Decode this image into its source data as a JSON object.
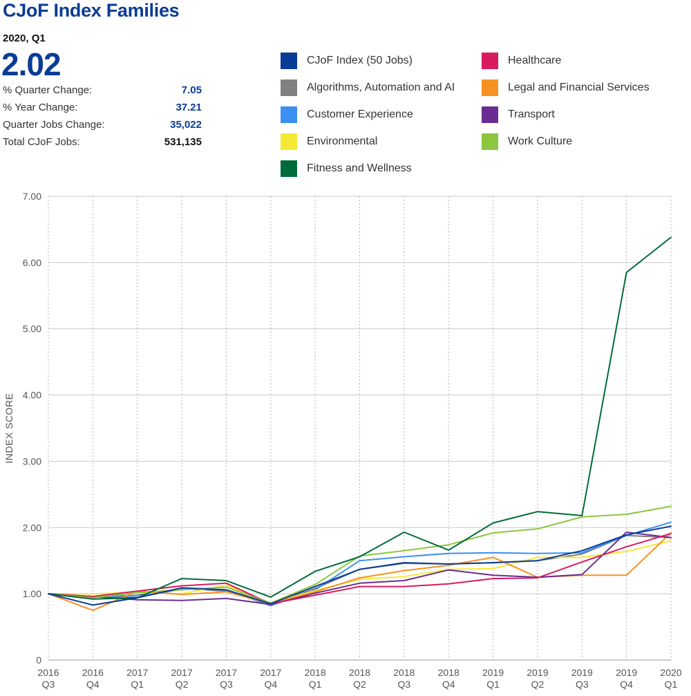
{
  "header": {
    "title": "CJoF Index Families",
    "period": "2020, Q1",
    "value": "2.02"
  },
  "stats": [
    {
      "label": "% Quarter Change:",
      "value": "7.05"
    },
    {
      "label": "% Year Change:",
      "value": "37.21"
    },
    {
      "label": "Quarter Jobs Change:",
      "value": "35,022"
    },
    {
      "label": "Total CJoF Jobs:",
      "value": "531,135"
    }
  ],
  "colors": {
    "accent": "#0a3b96",
    "grid": "#c8c8c8"
  },
  "chart_data": {
    "type": "line",
    "ylabel": "INDEX SCORE",
    "xlabel": "",
    "ylim": [
      0,
      7
    ],
    "yticks": [
      0,
      1,
      2,
      3,
      4,
      5,
      6,
      7
    ],
    "ytick_labels": [
      "0",
      "1.00",
      "2.00",
      "3.00",
      "4.00",
      "5.00",
      "6.00",
      "7.00"
    ],
    "grid": true,
    "legend_position": "top-right",
    "categories": [
      [
        "2016",
        "Q3"
      ],
      [
        "2016",
        "Q4"
      ],
      [
        "2017",
        "Q1"
      ],
      [
        "2017",
        "Q2"
      ],
      [
        "2017",
        "Q3"
      ],
      [
        "2017",
        "Q4"
      ],
      [
        "2018",
        "Q1"
      ],
      [
        "2018",
        "Q2"
      ],
      [
        "2018",
        "Q3"
      ],
      [
        "2018",
        "Q4"
      ],
      [
        "2019",
        "Q1"
      ],
      [
        "2019",
        "Q2"
      ],
      [
        "2019",
        "Q3"
      ],
      [
        "2019",
        "Q4"
      ],
      [
        "2020",
        "Q1"
      ]
    ],
    "series": [
      {
        "name": "Algorithms, Automation and AI",
        "color": "#808080",
        "values": [
          1.0,
          0.95,
          0.98,
          1.08,
          1.04,
          0.84,
          1.08,
          1.37,
          1.46,
          1.45,
          1.47,
          1.5,
          1.6,
          1.88,
          1.85
        ]
      },
      {
        "name": "Customer Experience",
        "color": "#3b8ff0",
        "values": [
          1.0,
          0.95,
          0.95,
          1.07,
          1.06,
          0.82,
          1.06,
          1.5,
          1.56,
          1.61,
          1.62,
          1.61,
          1.62,
          1.88,
          2.08
        ]
      },
      {
        "name": "Environmental",
        "color": "#f5e935",
        "values": [
          1.0,
          1.0,
          1.02,
          1.0,
          1.13,
          0.86,
          1.05,
          1.22,
          1.26,
          1.37,
          1.38,
          1.55,
          1.55,
          1.64,
          1.8
        ]
      },
      {
        "name": "Legal and Financial Services",
        "color": "#f59120",
        "values": [
          1.0,
          0.75,
          1.04,
          0.99,
          1.03,
          0.85,
          1.03,
          1.24,
          1.35,
          1.43,
          1.55,
          1.25,
          1.28,
          1.28,
          1.92
        ]
      },
      {
        "name": "Transport",
        "color": "#6a2d91",
        "values": [
          1.0,
          0.96,
          0.91,
          0.9,
          0.93,
          0.84,
          1.01,
          1.16,
          1.2,
          1.36,
          1.28,
          1.25,
          1.29,
          1.93,
          1.85
        ]
      },
      {
        "name": "Healthcare",
        "color": "#d81b5e",
        "values": [
          1.0,
          0.96,
          1.04,
          1.12,
          1.16,
          0.85,
          0.98,
          1.11,
          1.11,
          1.15,
          1.23,
          1.24,
          1.48,
          1.71,
          1.91
        ]
      },
      {
        "name": "Work Culture",
        "color": "#8cc63f",
        "values": [
          1.0,
          0.94,
          1.02,
          1.06,
          1.1,
          0.86,
          1.14,
          1.57,
          1.65,
          1.74,
          1.92,
          1.98,
          2.16,
          2.2,
          2.32
        ]
      },
      {
        "name": "Fitness and Wellness",
        "color": "#006b3a",
        "values": [
          1.0,
          0.92,
          0.94,
          1.23,
          1.2,
          0.95,
          1.34,
          1.56,
          1.93,
          1.66,
          2.07,
          2.24,
          2.18,
          5.85,
          6.38
        ]
      },
      {
        "name": "CJoF Index (50 Jobs)",
        "color": "#0a3b96",
        "values": [
          1.0,
          0.83,
          0.94,
          1.09,
          1.06,
          0.85,
          1.11,
          1.37,
          1.47,
          1.45,
          1.47,
          1.5,
          1.65,
          1.89,
          2.02
        ]
      }
    ],
    "legend": [
      {
        "name": "CJoF Index (50 Jobs)",
        "color": "#0a3b96"
      },
      {
        "name": "Algorithms, Automation and AI",
        "color": "#808080"
      },
      {
        "name": "Customer Experience",
        "color": "#3b8ff0"
      },
      {
        "name": "Environmental",
        "color": "#f5e935"
      },
      {
        "name": "Fitness and Wellness",
        "color": "#006b3a"
      },
      {
        "name": "Healthcare",
        "color": "#d81b5e"
      },
      {
        "name": "Legal and Financial Services",
        "color": "#f59120"
      },
      {
        "name": "Transport",
        "color": "#6a2d91"
      },
      {
        "name": "Work Culture",
        "color": "#8cc63f"
      }
    ]
  }
}
